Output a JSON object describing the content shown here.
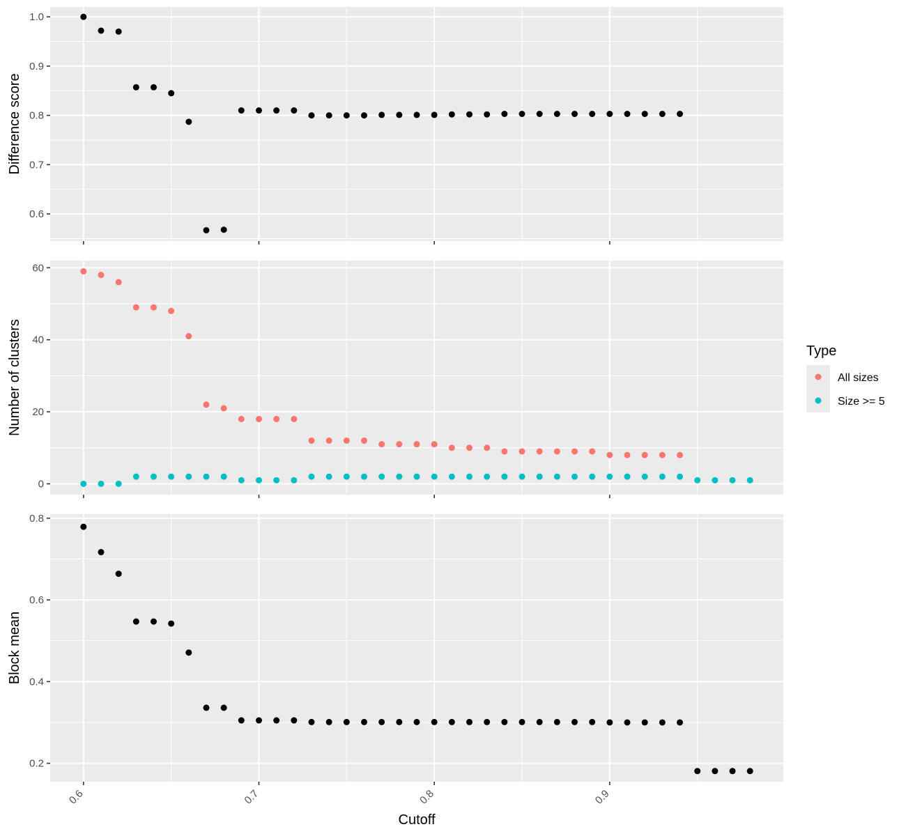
{
  "chart_data": {
    "type": "scatter",
    "xlabel": "Cutoff",
    "xlim": [
      0.581,
      0.999
    ],
    "x_ticks": [
      0.6,
      0.7,
      0.8,
      0.9
    ],
    "x_tick_labels": [
      "0.6",
      "0.7",
      "0.8",
      "0.9"
    ],
    "grid": true,
    "legend": {
      "title": "Type",
      "placement": "right",
      "entries": [
        {
          "label": "All sizes",
          "color": "#F8766D"
        },
        {
          "label": "Size >= 5",
          "color": "#00BFC4"
        }
      ]
    },
    "panels": [
      {
        "ylabel": "Difference score",
        "ylim": [
          0.545,
          1.02
        ],
        "y_ticks": [
          0.6,
          0.7,
          0.8,
          0.9,
          1.0
        ],
        "y_tick_labels": [
          "0.6",
          "0.7",
          "0.8",
          "0.9",
          "1.0"
        ],
        "series": [
          {
            "color": "#000000",
            "x": [
              0.6,
              0.61,
              0.62,
              0.63,
              0.64,
              0.65,
              0.66,
              0.67,
              0.68,
              0.69,
              0.7,
              0.71,
              0.72,
              0.73,
              0.74,
              0.75,
              0.76,
              0.77,
              0.78,
              0.79,
              0.8,
              0.81,
              0.82,
              0.83,
              0.84,
              0.85,
              0.86,
              0.87,
              0.88,
              0.89,
              0.9,
              0.91,
              0.92,
              0.93,
              0.94
            ],
            "values": [
              1.0,
              0.972,
              0.97,
              0.857,
              0.857,
              0.845,
              0.787,
              0.567,
              0.568,
              0.81,
              0.81,
              0.81,
              0.81,
              0.8,
              0.8,
              0.8,
              0.8,
              0.801,
              0.801,
              0.801,
              0.801,
              0.802,
              0.802,
              0.802,
              0.803,
              0.803,
              0.803,
              0.803,
              0.803,
              0.803,
              0.803,
              0.803,
              0.803,
              0.803,
              0.803
            ]
          }
        ]
      },
      {
        "ylabel": "Number of clusters",
        "ylim": [
          -3,
          62
        ],
        "y_ticks": [
          0,
          20,
          40,
          60
        ],
        "y_tick_labels": [
          "0",
          "20",
          "40",
          "60"
        ],
        "series": [
          {
            "name": "All sizes",
            "color": "#F8766D",
            "x": [
              0.6,
              0.61,
              0.62,
              0.63,
              0.64,
              0.65,
              0.66,
              0.67,
              0.68,
              0.69,
              0.7,
              0.71,
              0.72,
              0.73,
              0.74,
              0.75,
              0.76,
              0.77,
              0.78,
              0.79,
              0.8,
              0.81,
              0.82,
              0.83,
              0.84,
              0.85,
              0.86,
              0.87,
              0.88,
              0.89,
              0.9,
              0.91,
              0.92,
              0.93,
              0.94
            ],
            "values": [
              59,
              58,
              56,
              49,
              49,
              48,
              41,
              22,
              21,
              18,
              18,
              18,
              18,
              12,
              12,
              12,
              12,
              11,
              11,
              11,
              11,
              10,
              10,
              10,
              9,
              9,
              9,
              9,
              9,
              9,
              8,
              8,
              8,
              8,
              8
            ]
          },
          {
            "name": "Size >= 5",
            "color": "#00BFC4",
            "x": [
              0.6,
              0.61,
              0.62,
              0.63,
              0.64,
              0.65,
              0.66,
              0.67,
              0.68,
              0.69,
              0.7,
              0.71,
              0.72,
              0.73,
              0.74,
              0.75,
              0.76,
              0.77,
              0.78,
              0.79,
              0.8,
              0.81,
              0.82,
              0.83,
              0.84,
              0.85,
              0.86,
              0.87,
              0.88,
              0.89,
              0.9,
              0.91,
              0.92,
              0.93,
              0.94,
              0.95,
              0.96,
              0.97,
              0.98
            ],
            "values": [
              0,
              0,
              0,
              2,
              2,
              2,
              2,
              2,
              2,
              1,
              1,
              1,
              1,
              2,
              2,
              2,
              2,
              2,
              2,
              2,
              2,
              2,
              2,
              2,
              2,
              2,
              2,
              2,
              2,
              2,
              2,
              2,
              2,
              2,
              2,
              1,
              1,
              1,
              1
            ]
          }
        ]
      },
      {
        "ylabel": "Block mean",
        "ylim": [
          0.155,
          0.81
        ],
        "y_ticks": [
          0.2,
          0.4,
          0.6,
          0.8
        ],
        "y_tick_labels": [
          "0.2",
          "0.4",
          "0.6",
          "0.8"
        ],
        "series": [
          {
            "color": "#000000",
            "x": [
              0.6,
              0.61,
              0.62,
              0.63,
              0.64,
              0.65,
              0.66,
              0.67,
              0.68,
              0.69,
              0.7,
              0.71,
              0.72,
              0.73,
              0.74,
              0.75,
              0.76,
              0.77,
              0.78,
              0.79,
              0.8,
              0.81,
              0.82,
              0.83,
              0.84,
              0.85,
              0.86,
              0.87,
              0.88,
              0.89,
              0.9,
              0.91,
              0.92,
              0.93,
              0.94,
              0.95,
              0.96,
              0.97,
              0.98
            ],
            "values": [
              0.779,
              0.717,
              0.664,
              0.547,
              0.547,
              0.542,
              0.471,
              0.336,
              0.336,
              0.305,
              0.305,
              0.305,
              0.305,
              0.301,
              0.301,
              0.301,
              0.301,
              0.301,
              0.301,
              0.301,
              0.301,
              0.301,
              0.301,
              0.301,
              0.301,
              0.301,
              0.301,
              0.301,
              0.301,
              0.301,
              0.3,
              0.3,
              0.3,
              0.3,
              0.3,
              0.181,
              0.181,
              0.181,
              0.181
            ]
          }
        ]
      }
    ]
  }
}
